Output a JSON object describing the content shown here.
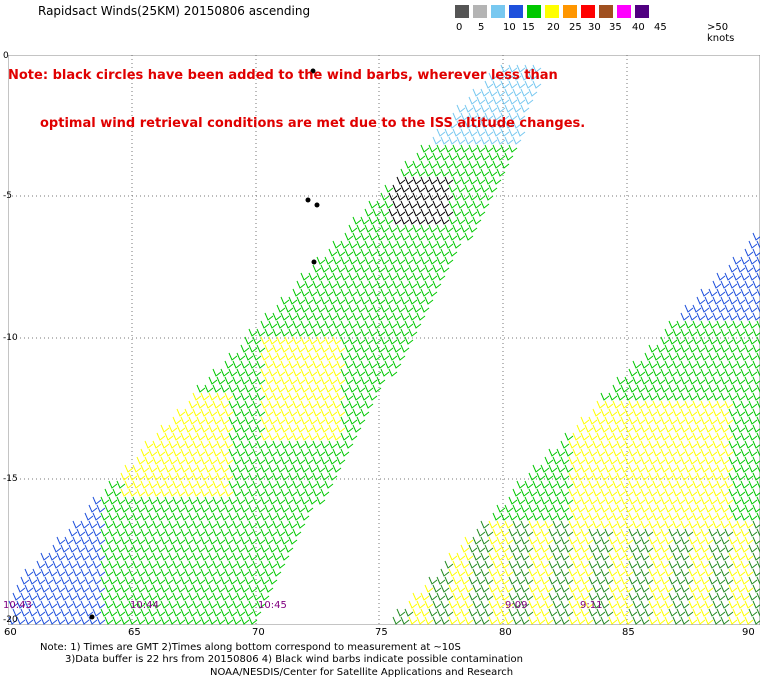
{
  "title": "Rapidsact Winds(25KM) 20150806 ascending",
  "note_line1": "Note: black circles have been added to the wind barbs, wherever less than",
  "note_line2": "optimal wind retrieval conditions are met due to the ISS altitude changes.",
  "legend": {
    "labels": [
      "0",
      "5",
      "10",
      "15",
      "20",
      "25",
      "30",
      "35",
      "40",
      "45",
      ">50 knots"
    ],
    "colors": [
      "#555555",
      "#b4b4b4",
      "#78c8f0",
      "#1e50dc",
      "#00c800",
      "#ffff00",
      "#ff9600",
      "#ff0000",
      "#a05020",
      "#ff00ff",
      "#500080"
    ]
  },
  "axes": {
    "lat_labels": [
      "0",
      "-5",
      "-10",
      "-15",
      "-20"
    ],
    "lon_labels": [
      "60",
      "65",
      "70",
      "75",
      "80",
      "85",
      "90"
    ]
  },
  "times": [
    "10:43",
    "10:44",
    "10:45",
    "9:09",
    "9:11"
  ],
  "footer_line1": "Note: 1) Times are GMT 2)Times along bottom correspond to measurement at ~10S",
  "footer_line2": "3)Data buffer is 22 hrs from 20150806 4) Black wind barbs indicate possible contamination",
  "footer_line3": "NOAA/NESDIS/Center for Satellite Applications and Research"
}
